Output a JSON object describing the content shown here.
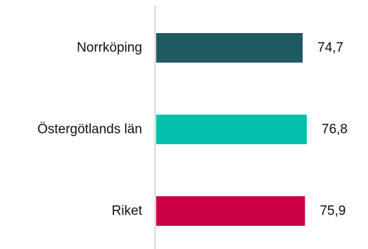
{
  "chart_data": {
    "type": "bar",
    "orientation": "horizontal",
    "categories": [
      "Norrköping",
      "Östergötlands län",
      "Riket"
    ],
    "values": [
      74.7,
      76.8,
      75.9
    ],
    "value_labels": [
      "74,7",
      "76,8",
      "75,9"
    ],
    "colors": [
      "#1f5a62",
      "#00c0ad",
      "#cc0044"
    ],
    "axis_color": "#c8c8c8",
    "grid": false,
    "legend": "none"
  }
}
